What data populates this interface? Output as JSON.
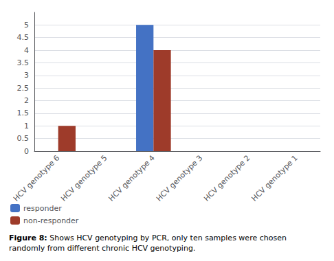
{
  "chart_data": {
    "type": "bar",
    "categories": [
      "HCV genotype 6",
      "HCV genotype 5",
      "HCV genotype 4",
      "HCV genotype 3",
      "HCV genotype 2",
      "HCV genotype 1"
    ],
    "series": [
      {
        "name": "responder",
        "color": "#4472C4",
        "values": [
          0,
          0,
          5,
          0,
          0,
          0
        ]
      },
      {
        "name": "non-responder",
        "color": "#9E3B2A",
        "values": [
          1,
          0,
          4,
          0,
          0,
          0
        ]
      }
    ],
    "ylim": [
      0,
      5.5
    ],
    "yticks": [
      0,
      0.5,
      1,
      1.5,
      2,
      2.5,
      3,
      3.5,
      4,
      4.5,
      5
    ],
    "grid": true,
    "legend": "lower left",
    "annotations": [
      "Figure 8:",
      " Shows HCV genotyping by PCR, only ten samples were chosen\nrandomly from different chronic HCV genotyping."
    ]
  }
}
